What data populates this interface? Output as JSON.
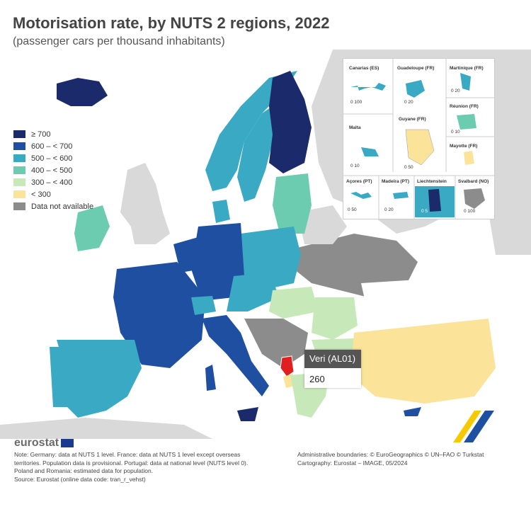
{
  "title": "Motorisation rate, by NUTS 2 regions, 2022",
  "subtitle": "(passenger cars per thousand inhabitants)",
  "legend": [
    {
      "label": "≥ 700",
      "color": "#1b2a6b"
    },
    {
      "label": "600 – < 700",
      "color": "#1f4fa0"
    },
    {
      "label": "500 – < 600",
      "color": "#3aa9c4"
    },
    {
      "label": "400 – < 500",
      "color": "#6cccb0"
    },
    {
      "label": "300 – < 400",
      "color": "#c7e8b8"
    },
    {
      "label": "< 300",
      "color": "#fbe39a"
    },
    {
      "label": "Data not available",
      "color": "#8c8c8c"
    }
  ],
  "insets": {
    "canarias": "Canarias (ES)",
    "guadeloupe": "Guadeloupe (FR)",
    "martinique": "Martinique (FR)",
    "reunion": "Réunion (FR)",
    "guyane": "Guyane (FR)",
    "malta": "Malta",
    "mayotte": "Mayotte (FR)",
    "acores": "Açores (PT)",
    "madeira": "Madeira (PT)",
    "liechtenstein": "Liechtenstein",
    "svalbard": "Svalbard (NO)",
    "scales": [
      "0  100",
      "0  20",
      "0  20",
      "0  10",
      "0  50",
      "0  10",
      "0  50",
      "0  20",
      "0  5",
      "0  100"
    ]
  },
  "tooltip": {
    "region": "Veri (AL01)",
    "value": "260"
  },
  "logo": "eurostat",
  "note": "Note: Germany: data at NUTS 1 level. France: data at NUTS 1 level except overseas territories. Population data is provisional. Portugal: data at national level (NUTS level 0). Poland and Romania: estimated data for population.",
  "source": "Source: Eurostat (online data code: tran_r_vehst)",
  "boundaries": "Administrative boundaries: © EuroGeographics © UN–FAO © Turkstat",
  "cartography": "Cartography: Eurostat – IMAGE, 05/2024"
}
